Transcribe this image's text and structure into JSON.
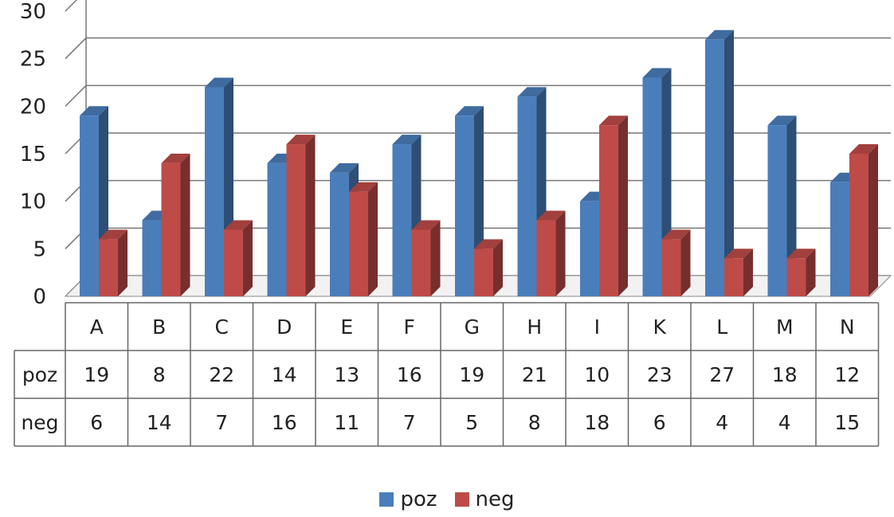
{
  "chart_data": {
    "type": "bar",
    "categories": [
      "A",
      "B",
      "C",
      "D",
      "E",
      "F",
      "G",
      "H",
      "I",
      "K",
      "L",
      "M",
      "N"
    ],
    "series": [
      {
        "name": "poz",
        "color": "#4a7ebb",
        "values": [
          19,
          8,
          22,
          14,
          13,
          16,
          19,
          21,
          10,
          23,
          27,
          18,
          12
        ]
      },
      {
        "name": "neg",
        "color": "#be4b48",
        "values": [
          6,
          14,
          7,
          16,
          11,
          7,
          5,
          8,
          18,
          6,
          4,
          4,
          15
        ]
      }
    ],
    "yticks": [
      "0",
      "5",
      "10",
      "15",
      "20",
      "25",
      "30"
    ],
    "ylim": [
      0,
      30
    ],
    "grid": true,
    "legend": "bottom",
    "data_table": true
  }
}
